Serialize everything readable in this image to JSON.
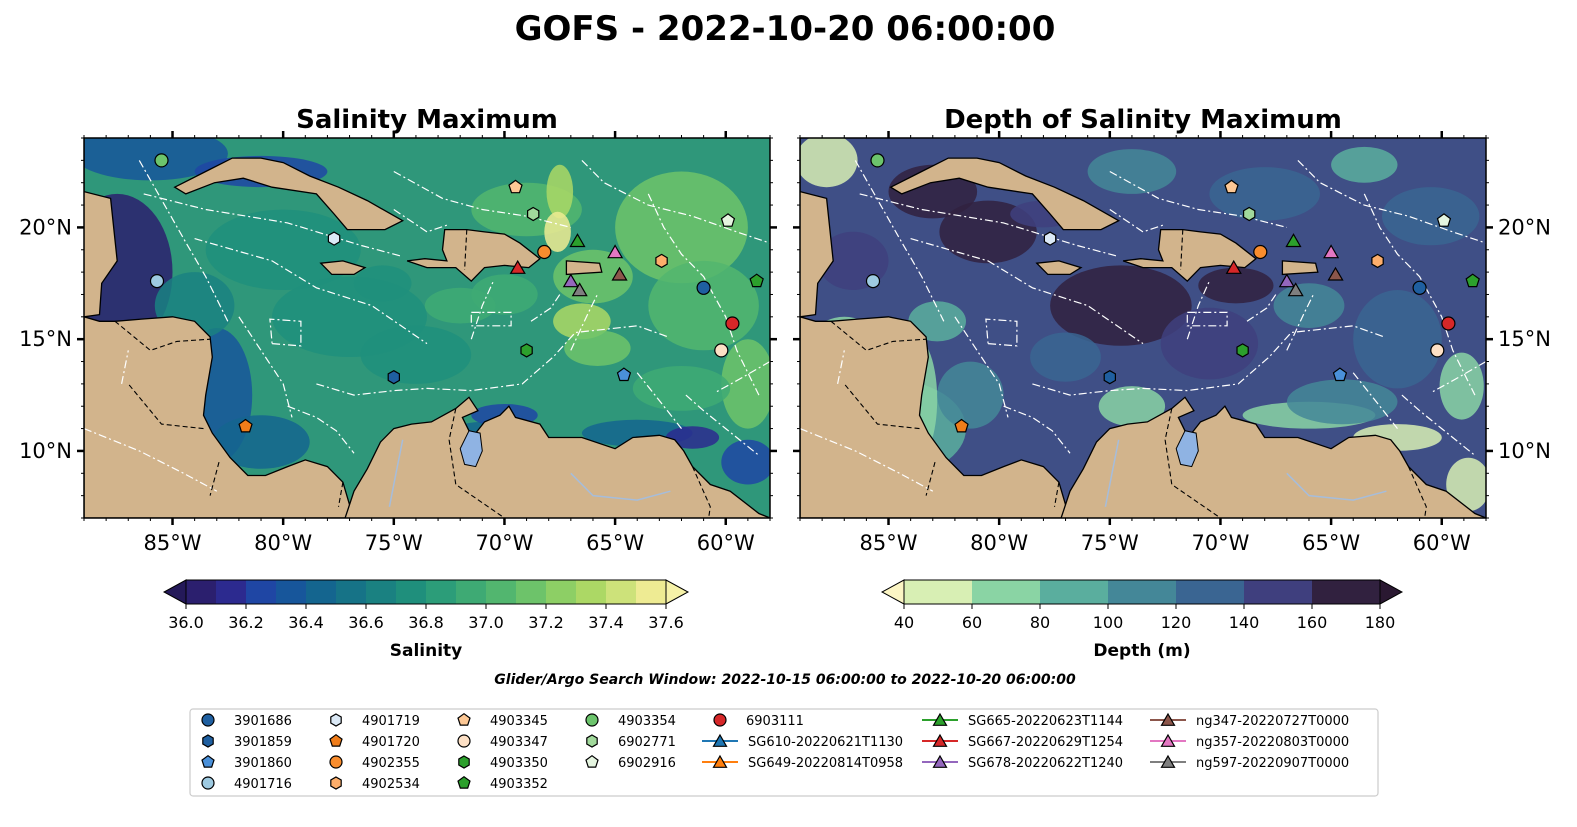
{
  "figure": {
    "suptitle": "GOFS - 2022-10-20 06:00:00",
    "search_window": "Glider/Argo Search Window: 2022-10-15 06:00:00 to 2022-10-20 06:00:00"
  },
  "colors": {
    "land": "#d2b48c",
    "lake": "#8fb3e3",
    "river": "#a6bddb",
    "border": "#000000",
    "eez": "#ffffff"
  },
  "chart_data": [
    {
      "type": "heatmap",
      "title": "Salinity Maximum",
      "lon_range": [
        -89,
        -58
      ],
      "lat_range": [
        7,
        24
      ],
      "xticks": [
        {
          "lon": -85,
          "label": "85°W"
        },
        {
          "lon": -80,
          "label": "80°W"
        },
        {
          "lon": -75,
          "label": "75°W"
        },
        {
          "lon": -70,
          "label": "70°W"
        },
        {
          "lon": -65,
          "label": "65°W"
        },
        {
          "lon": -60,
          "label": "60°W"
        }
      ],
      "yticks": [
        {
          "lat": 20,
          "label": "20°N"
        },
        {
          "lat": 15,
          "label": "15°N"
        },
        {
          "lat": 10,
          "label": "10°N"
        }
      ],
      "colorbar": {
        "label": "Salinity",
        "min": 36.0,
        "max": 37.6,
        "step": 0.1,
        "ticks": [
          "36.0",
          "36.2",
          "36.4",
          "36.6",
          "36.8",
          "37.0",
          "37.2",
          "37.4",
          "37.6"
        ],
        "extend": "both",
        "colors": [
          "#2b1f6e",
          "#2c2a8f",
          "#1f46a4",
          "#17569b",
          "#14658f",
          "#167387",
          "#1a8181",
          "#1f8f7c",
          "#2c9d79",
          "#3eaa74",
          "#52b66f",
          "#6dc36a",
          "#8dcf65",
          "#acd865",
          "#cde27a",
          "#eeeb93"
        ],
        "under": "#241959",
        "over": "#f6f2a8"
      },
      "ocean_fill": "#2f977a"
    },
    {
      "type": "heatmap",
      "title": "Depth of Salinity Maximum",
      "lon_range": [
        -89,
        -58
      ],
      "lat_range": [
        7,
        24
      ],
      "xticks": [
        {
          "lon": -85,
          "label": "85°W"
        },
        {
          "lon": -80,
          "label": "80°W"
        },
        {
          "lon": -75,
          "label": "75°W"
        },
        {
          "lon": -70,
          "label": "70°W"
        },
        {
          "lon": -65,
          "label": "65°W"
        },
        {
          "lon": -60,
          "label": "60°W"
        }
      ],
      "yticks": [
        {
          "lat": 20,
          "label": "20°N"
        },
        {
          "lat": 15,
          "label": "15°N"
        },
        {
          "lat": 10,
          "label": "10°N"
        }
      ],
      "colorbar": {
        "label": "Depth (m)",
        "min": 40,
        "max": 180,
        "step": 20,
        "ticks": [
          "40",
          "60",
          "80",
          "100",
          "120",
          "140",
          "160",
          "180"
        ],
        "extend": "both",
        "colors": [
          "#d8efb4",
          "#8ad4a4",
          "#5aae9e",
          "#448798",
          "#3a6592",
          "#3f3f7e",
          "#31213f"
        ],
        "under": "#fbf5c4",
        "over": "#2a1831"
      },
      "ocean_fill": "#3f4f86"
    }
  ],
  "markers": [
    {
      "id": "3901686",
      "shape": "circle",
      "color": "#1f5fa0",
      "lon": -61.0,
      "lat": 17.3
    },
    {
      "id": "3901859",
      "shape": "hexagon",
      "color": "#1f5fa0",
      "lon": -75.0,
      "lat": 13.3
    },
    {
      "id": "3901860",
      "shape": "pentagon",
      "color": "#4a90d9",
      "lon": -64.6,
      "lat": 13.4
    },
    {
      "id": "4901716",
      "shape": "circle",
      "color": "#9ecae1",
      "lon": -85.7,
      "lat": 17.6
    },
    {
      "id": "4901719",
      "shape": "hexagon",
      "color": "#dbe9f6",
      "lon": -77.7,
      "lat": 19.5
    },
    {
      "id": "4901720",
      "shape": "pentagon",
      "color": "#f07d1a",
      "lon": -81.7,
      "lat": 11.1
    },
    {
      "id": "4902355",
      "shape": "circle",
      "color": "#f98d2e",
      "lon": -68.2,
      "lat": 18.9
    },
    {
      "id": "4902534",
      "shape": "hexagon",
      "color": "#fdae6b",
      "lon": -62.9,
      "lat": 18.5
    },
    {
      "id": "4903345",
      "shape": "pentagon",
      "color": "#fdc895",
      "lon": -69.5,
      "lat": 21.8
    },
    {
      "id": "4903347",
      "shape": "circle",
      "color": "#fde0c5",
      "lon": -60.2,
      "lat": 14.5
    },
    {
      "id": "4903350",
      "shape": "hexagon",
      "color": "#2ca02c",
      "lon": -69.0,
      "lat": 14.5
    },
    {
      "id": "4903352",
      "shape": "pentagon",
      "color": "#2ca02c",
      "lon": -58.6,
      "lat": 17.6
    },
    {
      "id": "4903354",
      "shape": "circle",
      "color": "#6cc46c",
      "lon": -85.5,
      "lat": 23.0
    },
    {
      "id": "6902771",
      "shape": "hexagon",
      "color": "#a1d99b",
      "lon": -68.7,
      "lat": 20.6
    },
    {
      "id": "6902916",
      "shape": "pentagon",
      "color": "#e5f5e0",
      "lon": -59.9,
      "lat": 20.3
    },
    {
      "id": "6903111",
      "shape": "circle",
      "color": "#d62728",
      "lon": -59.7,
      "lat": 15.7
    },
    {
      "id": "SG610-20220621T1130",
      "shape": "triangle",
      "color": "#1f77b4",
      "lon": null,
      "lat": null
    },
    {
      "id": "SG649-20220814T0958",
      "shape": "triangle",
      "color": "#ff7f0e",
      "lon": null,
      "lat": null
    },
    {
      "id": "SG665-20220623T1144",
      "shape": "triangle",
      "color": "#2ca02c",
      "lon": -66.7,
      "lat": 19.4
    },
    {
      "id": "SG667-20220629T1254",
      "shape": "triangle",
      "color": "#d62728",
      "lon": -69.4,
      "lat": 18.2
    },
    {
      "id": "SG678-20220622T1240",
      "shape": "triangle",
      "color": "#9467bd",
      "lon": -67.0,
      "lat": 17.6
    },
    {
      "id": "ng347-20220727T0000",
      "shape": "triangle",
      "color": "#8c564b",
      "lon": -64.8,
      "lat": 17.9
    },
    {
      "id": "ng357-20220803T0000",
      "shape": "triangle",
      "color": "#e377c2",
      "lon": -65.0,
      "lat": 18.9
    },
    {
      "id": "ng597-20220907T0000",
      "shape": "triangle",
      "color": "#7f7f7f",
      "lon": -66.6,
      "lat": 17.2
    }
  ]
}
